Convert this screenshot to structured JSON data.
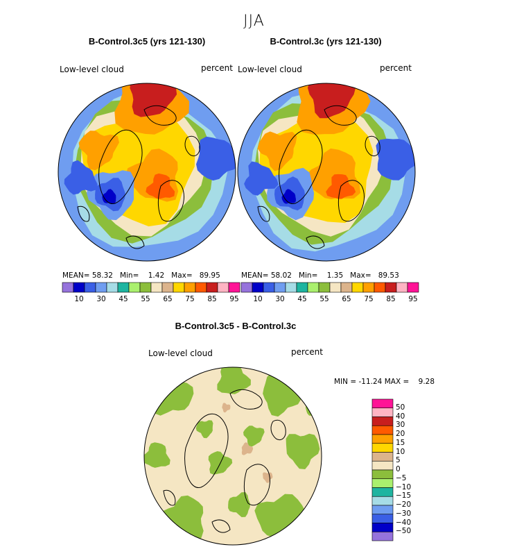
{
  "title": "JJA",
  "colors": {
    "palette": [
      "#9673dc",
      "#0000c8",
      "#3a5fe6",
      "#6f9df0",
      "#a6dce6",
      "#1eb4a0",
      "#aaf06e",
      "#8cbe3c",
      "#f5e6c3",
      "#dcb48c",
      "#ffd700",
      "#ffa000",
      "#ff5a00",
      "#c81e1e",
      "#ffb4c3",
      "#ff1496"
    ],
    "diff_palette": [
      "#9673dc",
      "#0000c8",
      "#3a5fe6",
      "#6f9df0",
      "#a6dce6",
      "#1eb4a0",
      "#aaf06e",
      "#8cbe3c",
      "#f5e6c3",
      "#dcb48c",
      "#ffd700",
      "#ffa000",
      "#ff5a00",
      "#c81e1e",
      "#ffb4c3",
      "#ff1496"
    ],
    "coast": "#000000",
    "border": "#000000"
  },
  "chart_data": [
    {
      "type": "heatmap",
      "title": "B-Control.3c5 (yrs 121-130)",
      "variable": "Low-level cloud",
      "units": "percent",
      "projection": "north polar stereographic",
      "stats": {
        "mean_label": "MEAN=",
        "mean": "58.32",
        "min_label": "Min=",
        "min": "1.42",
        "max_label": "Max=",
        "max": "89.95"
      },
      "colorbar": {
        "levels": [
          10,
          15,
          20,
          25,
          30,
          35,
          40,
          45,
          50,
          55,
          60,
          65,
          70,
          75,
          80,
          85,
          90,
          95
        ],
        "tick_labels": [
          "10",
          "30",
          "45",
          "55",
          "65",
          "75",
          "85",
          "95"
        ]
      }
    },
    {
      "type": "heatmap",
      "title": "B-Control.3c (yrs 121-130)",
      "variable": "Low-level cloud",
      "units": "percent",
      "projection": "north polar stereographic",
      "stats": {
        "mean_label": "MEAN=",
        "mean": "58.02",
        "min_label": "Min=",
        "min": "1.35",
        "max_label": "Max=",
        "max": "89.53"
      },
      "colorbar": {
        "levels": [
          10,
          15,
          20,
          25,
          30,
          35,
          40,
          45,
          50,
          55,
          60,
          65,
          70,
          75,
          80,
          85,
          90,
          95
        ],
        "tick_labels": [
          "10",
          "30",
          "45",
          "55",
          "65",
          "75",
          "85",
          "95"
        ]
      }
    },
    {
      "type": "heatmap",
      "title": "B-Control.3c5 - B-Control.3c",
      "variable": "Low-level cloud",
      "units": "percent",
      "projection": "north polar stereographic",
      "stats": {
        "min_label": "MIN =",
        "min": "-11.24",
        "max_label": "MAX =",
        "max": "9.28"
      },
      "colorbar": {
        "levels": [
          -50,
          -40,
          -30,
          -20,
          -15,
          -10,
          -5,
          0,
          5,
          10,
          15,
          20,
          30,
          40,
          50
        ],
        "tick_labels": [
          "50",
          "40",
          "30",
          "20",
          "15",
          "10",
          "5",
          "0",
          "−5",
          "−10",
          "−15",
          "−20",
          "−30",
          "−40",
          "−50"
        ]
      }
    }
  ]
}
